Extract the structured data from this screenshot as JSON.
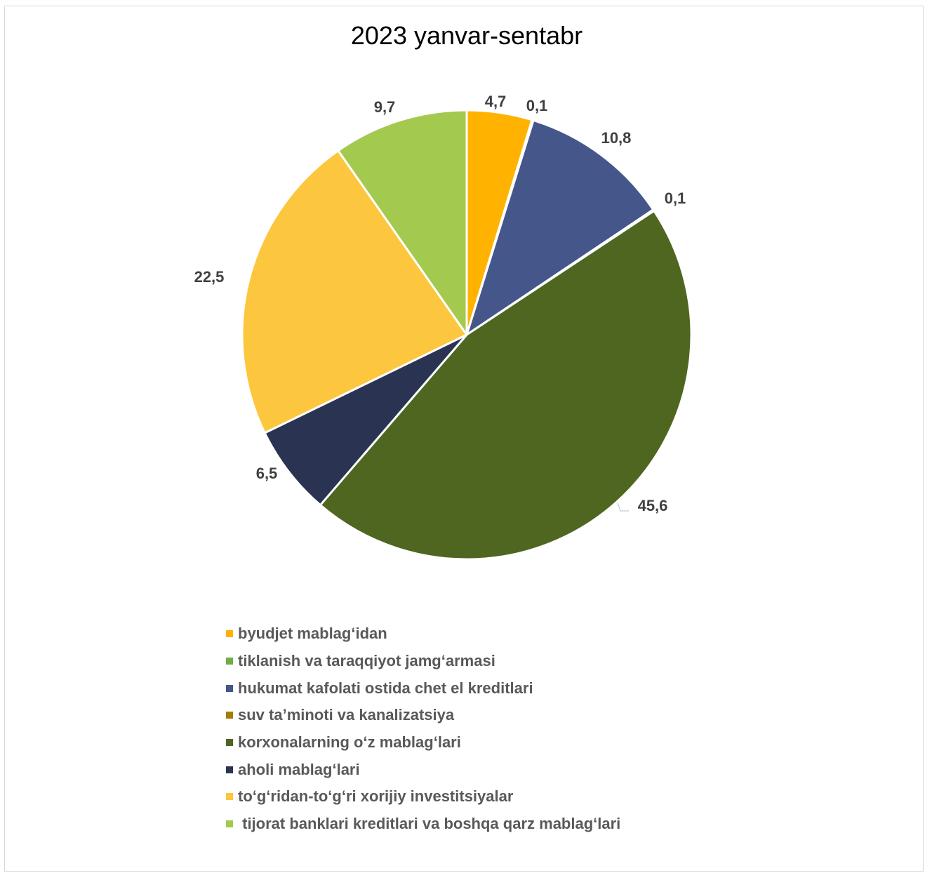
{
  "chart_data": {
    "type": "pie",
    "title": "2023 yanvar-sentabr",
    "slices": [
      {
        "label": "byudjet mablag‘idan",
        "value": 4.7,
        "display": "4,7",
        "color": "#FFB300"
      },
      {
        "label": "tiklanish va taraqqiyot jamg‘armasi",
        "value": 0.1,
        "display": "0,1",
        "color": "#70AD47"
      },
      {
        "label": "hukumat kafolati ostida chet el kreditlari",
        "value": 10.8,
        "display": "10,8",
        "color": "#44568A"
      },
      {
        "label": "suv ta’minoti va kanalizatsiya",
        "value": 0.1,
        "display": "0,1",
        "color": "#A77C00"
      },
      {
        "label": "korxonalarning o‘z mablag‘lari",
        "value": 45.6,
        "display": "45,6",
        "color": "#4F6620"
      },
      {
        "label": "aholi mablag‘lari",
        "value": 6.5,
        "display": "6,5",
        "color": "#2A3452"
      },
      {
        "label": "to‘g‘ridan-to‘g‘ri xorijiy investitsiyalar",
        "value": 22.5,
        "display": "22,5",
        "color": "#FCC73E"
      },
      {
        "label": " tijorat banklari kreditlari va boshqa qarz mablag‘lari",
        "value": 9.7,
        "display": "9,7",
        "color": "#A3C94E"
      }
    ],
    "legend_position": "bottom"
  }
}
